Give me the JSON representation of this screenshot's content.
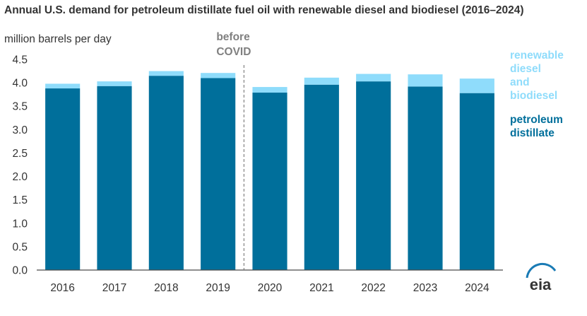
{
  "chart_data": {
    "type": "bar",
    "stacked": true,
    "title": "Annual U.S. demand for petroleum distillate fuel oil with renewable diesel and biodiesel (2016–2024)",
    "ylabel": "million barrels per day",
    "ylim": [
      0,
      4.5
    ],
    "yticks": [
      "0.0",
      "0.5",
      "1.0",
      "1.5",
      "2.0",
      "2.5",
      "3.0",
      "3.5",
      "4.0",
      "4.5"
    ],
    "categories": [
      "2016",
      "2017",
      "2018",
      "2019",
      "2020",
      "2021",
      "2022",
      "2023",
      "2024"
    ],
    "series": [
      {
        "name": "petroleum distillate",
        "color": "#006f9b",
        "values": [
          3.88,
          3.93,
          4.15,
          4.1,
          3.79,
          3.96,
          4.03,
          3.92,
          3.78
        ]
      },
      {
        "name": "renewable diesel and biodiesel",
        "color": "#8fdcfb",
        "values": [
          0.1,
          0.1,
          0.1,
          0.11,
          0.12,
          0.15,
          0.16,
          0.26,
          0.31
        ]
      }
    ],
    "legend_lines": [
      {
        "series": 1,
        "lines": [
          "renewable",
          "diesel",
          "and",
          "biodiesel"
        ]
      },
      {
        "series": 0,
        "lines": [
          "petroleum",
          "distillate"
        ]
      }
    ],
    "annotation": {
      "lines": [
        "before",
        "COVID"
      ],
      "divider_after_category": "2019",
      "color": "#808080"
    },
    "grid": false,
    "legend_position": "right",
    "logo": "eia"
  }
}
